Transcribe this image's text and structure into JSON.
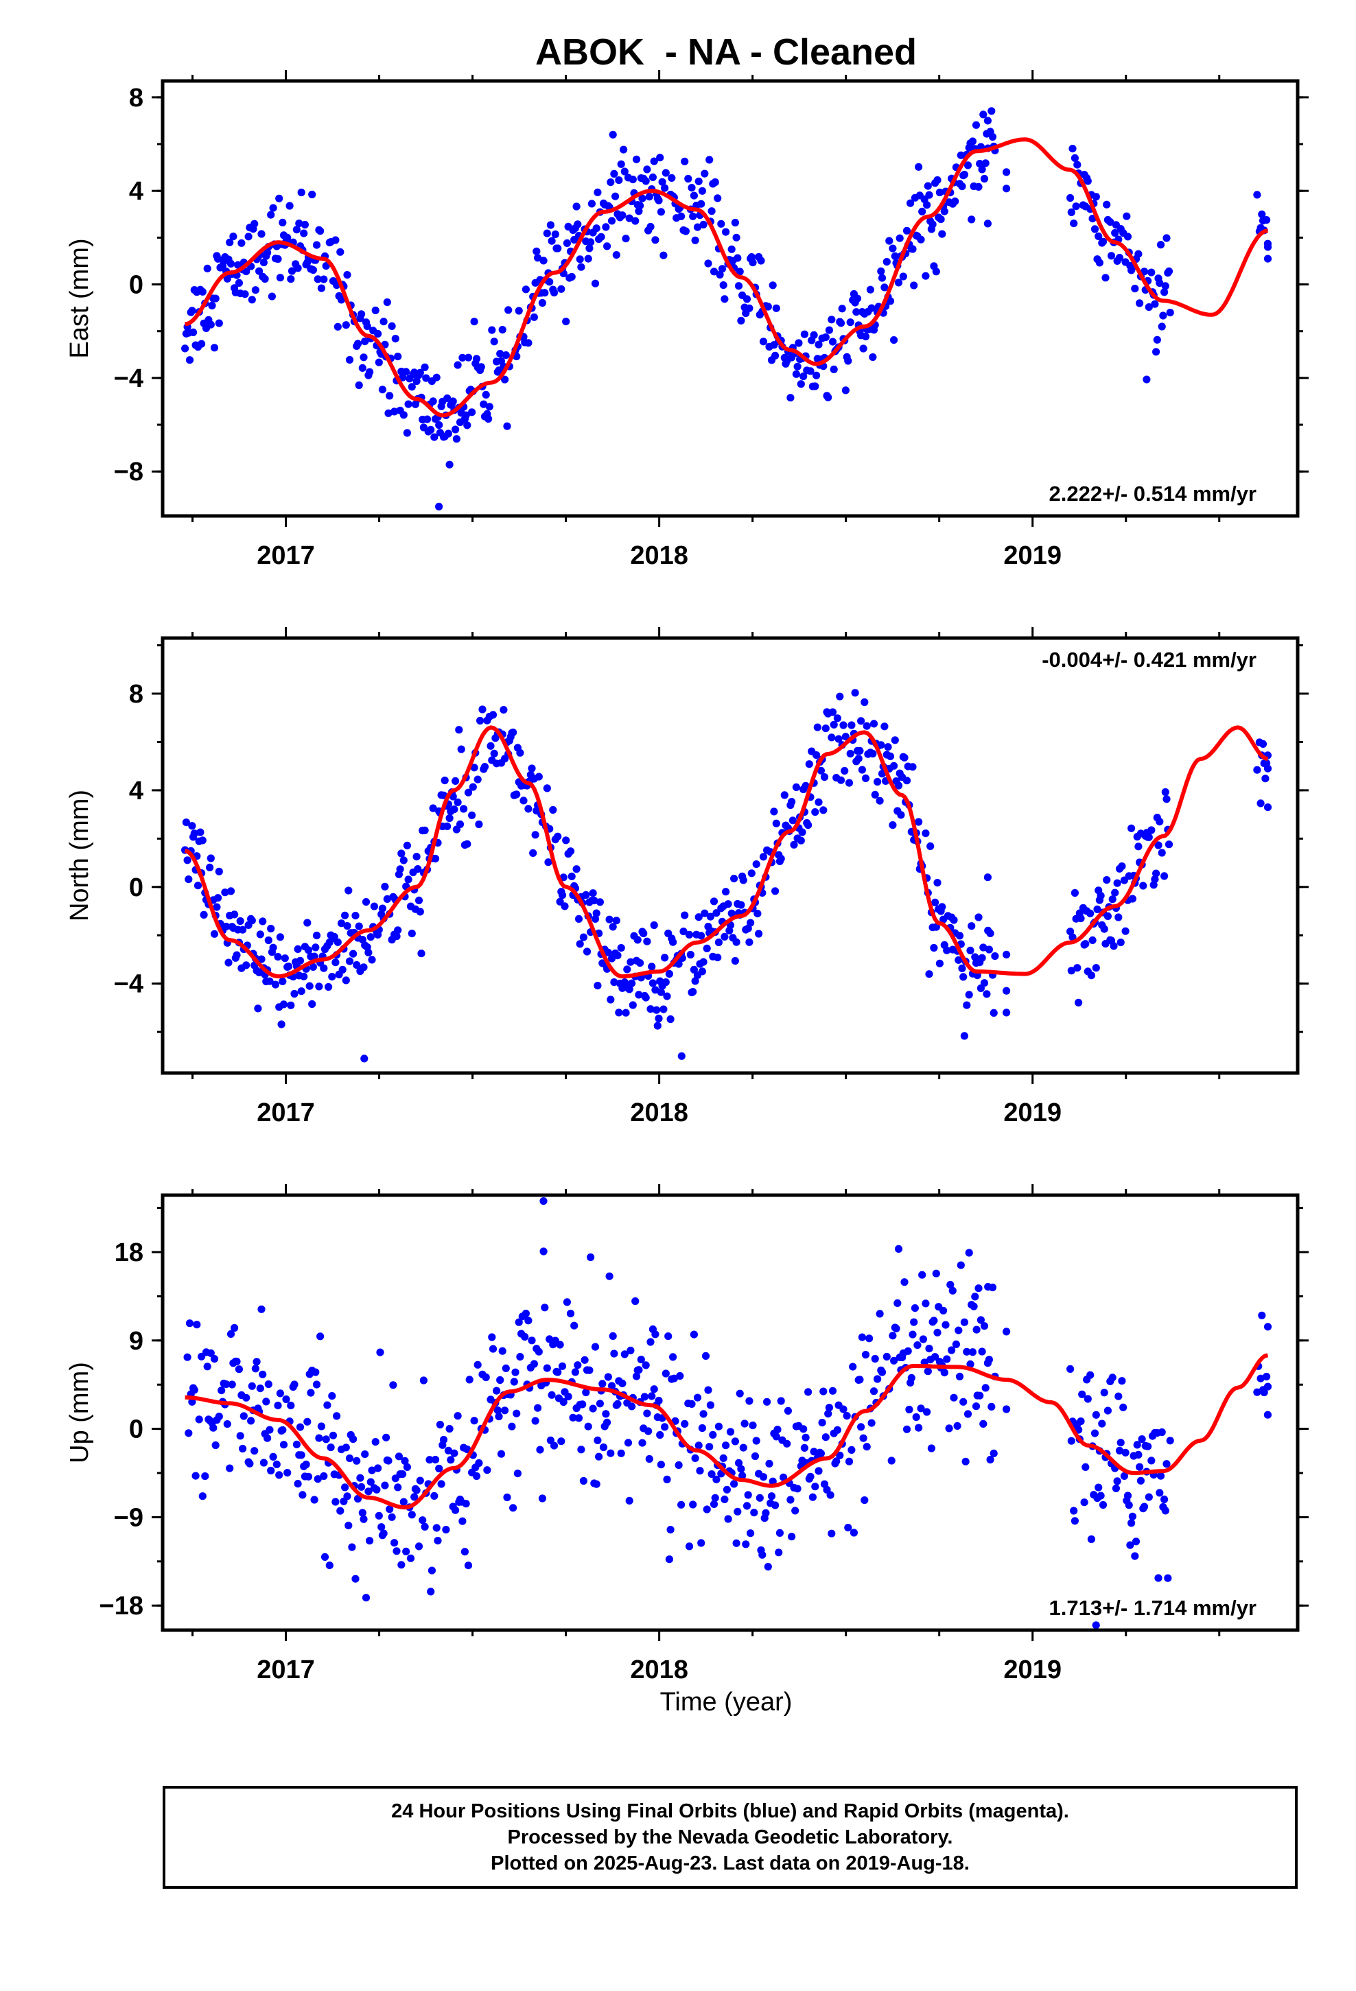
{
  "title": "ABOK  - NA - Cleaned",
  "xaxis_label": "Time (year)",
  "footer": {
    "line1": "24 Hour Positions Using Final Orbits (blue) and Rapid Orbits (magenta).",
    "line2": "Processed by the Nevada Geodetic Laboratory.",
    "line3": "Plotted on 2025-Aug-23. Last data on 2019-Aug-18."
  },
  "colors": {
    "points": "#0000ff",
    "fit": "#ff0000",
    "frame": "#000000"
  },
  "chart_data": [
    {
      "type": "scatter",
      "component": "east",
      "ylabel": "East (mm)",
      "xlim": [
        2016.67,
        2019.71
      ],
      "ylim": [
        -9.9,
        8.7
      ],
      "yticks": [
        8,
        4,
        0,
        -4,
        -8
      ],
      "ytick_labels": [
        "8",
        "4",
        "0",
        "−4",
        "−8"
      ],
      "xticks": [
        2017,
        2018,
        2019
      ],
      "xtick_labels": [
        "2017",
        "2018",
        "2019"
      ],
      "rate_label": "2.222+/- 0.514 mm/yr",
      "rate_label_position": "bottom-right",
      "grid": false,
      "data_span": [
        2016.73,
        2019.63
      ],
      "gaps": [
        [
          2018.9,
          2019.1
        ],
        [
          2019.37,
          2019.6
        ]
      ],
      "sparse_points": [
        [
          2018.88,
          7.0
        ],
        [
          2018.88,
          2.6
        ],
        [
          2018.93,
          4.8
        ],
        [
          2018.93,
          4.1
        ],
        [
          2019.63,
          1.6
        ],
        [
          2019.63,
          1.1
        ],
        [
          2017.41,
          -9.5
        ]
      ],
      "noise_sd": 1.0,
      "fit_curve": {
        "model": "seasonal",
        "x": [
          2016.73,
          2016.85,
          2016.98,
          2017.1,
          2017.22,
          2017.35,
          2017.42,
          2017.55,
          2017.72,
          2017.85,
          2017.98,
          2018.1,
          2018.22,
          2018.35,
          2018.42,
          2018.55,
          2018.72,
          2018.85,
          2018.98,
          2019.1,
          2019.22,
          2019.35,
          2019.48,
          2019.63
        ],
        "y": [
          -1.7,
          0.5,
          1.8,
          1.1,
          -2.2,
          -4.9,
          -5.6,
          -4.2,
          0.5,
          3.1,
          4.0,
          3.2,
          0.3,
          -2.8,
          -3.4,
          -1.8,
          2.9,
          5.7,
          6.2,
          4.9,
          1.8,
          -0.7,
          -1.3,
          2.3
        ]
      }
    },
    {
      "type": "scatter",
      "component": "north",
      "ylabel": "North (mm)",
      "xlim": [
        2016.67,
        2019.71
      ],
      "ylim": [
        -7.7,
        10.3
      ],
      "yticks": [
        8,
        4,
        0,
        -4
      ],
      "ytick_labels": [
        "8",
        "4",
        "0",
        "−4"
      ],
      "xticks": [
        2017,
        2018,
        2019
      ],
      "xtick_labels": [
        "2017",
        "2018",
        "2019"
      ],
      "rate_label": "-0.004+/- 0.421 mm/yr",
      "rate_label_position": "top-right",
      "grid": false,
      "data_span": [
        2016.73,
        2019.63
      ],
      "gaps": [
        [
          2018.9,
          2019.1
        ],
        [
          2019.37,
          2019.6
        ]
      ],
      "sparse_points": [
        [
          2018.88,
          0.4
        ],
        [
          2018.93,
          -2.8
        ],
        [
          2018.93,
          -4.3
        ],
        [
          2018.93,
          -5.2
        ],
        [
          2019.63,
          4.9
        ],
        [
          2019.63,
          3.3
        ],
        [
          2017.21,
          -7.1
        ],
        [
          2018.06,
          -7.0
        ]
      ],
      "noise_sd": 1.0,
      "fit_curve": {
        "model": "seasonal",
        "x": [
          2016.73,
          2016.85,
          2016.98,
          2017.1,
          2017.22,
          2017.35,
          2017.45,
          2017.55,
          2017.65,
          2017.75,
          2017.9,
          2018.0,
          2018.1,
          2018.22,
          2018.35,
          2018.45,
          2018.55,
          2018.65,
          2018.75,
          2018.85,
          2018.98,
          2019.1,
          2019.22,
          2019.35,
          2019.45,
          2019.55,
          2019.63
        ],
        "y": [
          1.5,
          -2.2,
          -3.7,
          -3.0,
          -1.8,
          0.0,
          4.0,
          6.6,
          4.3,
          0.0,
          -3.7,
          -3.5,
          -2.3,
          -1.2,
          2.3,
          5.5,
          6.4,
          3.8,
          -1.5,
          -3.5,
          -3.6,
          -2.3,
          -0.8,
          2.1,
          5.3,
          6.6,
          5.3
        ]
      }
    },
    {
      "type": "scatter",
      "component": "up",
      "ylabel": "Up (mm)",
      "xlim": [
        2016.67,
        2019.71
      ],
      "ylim": [
        -20.5,
        23.8
      ],
      "yticks": [
        18,
        9,
        0,
        -9,
        -18
      ],
      "ytick_labels": [
        "18",
        "9",
        "0",
        "−9",
        "−18"
      ],
      "xticks": [
        2017,
        2018,
        2019
      ],
      "xtick_labels": [
        "2017",
        "2018",
        "2019"
      ],
      "xlabel": "Time (year)",
      "rate_label": "1.713+/- 1.714 mm/yr",
      "rate_label_position": "bottom-right",
      "grid": false,
      "data_span": [
        2016.73,
        2019.63
      ],
      "gaps": [
        [
          2018.9,
          2019.1
        ],
        [
          2019.37,
          2019.6
        ]
      ],
      "sparse_points": [
        [
          2018.85,
          10.1
        ],
        [
          2018.88,
          6.7
        ],
        [
          2018.93,
          9.9
        ],
        [
          2018.93,
          2.0
        ],
        [
          2019.63,
          10.4
        ],
        [
          2019.63,
          4.3
        ],
        [
          2017.69,
          23.2
        ],
        [
          2019.17,
          -20.0
        ]
      ],
      "noise_sd": 4.5,
      "fit_curve": {
        "model": "seasonal",
        "x": [
          2016.73,
          2016.85,
          2016.98,
          2017.1,
          2017.22,
          2017.32,
          2017.45,
          2017.6,
          2017.7,
          2017.85,
          2017.98,
          2018.1,
          2018.22,
          2018.3,
          2018.45,
          2018.55,
          2018.68,
          2018.8,
          2018.93,
          2019.05,
          2019.15,
          2019.27,
          2019.35,
          2019.45,
          2019.55,
          2019.63
        ],
        "y": [
          3.2,
          2.6,
          0.9,
          -3.0,
          -7.0,
          -8.0,
          -4.0,
          3.8,
          5.0,
          4.0,
          2.4,
          -2.2,
          -5.2,
          -5.8,
          -3.0,
          1.8,
          6.4,
          6.3,
          5.0,
          2.7,
          -1.7,
          -4.5,
          -4.3,
          -1.2,
          4.2,
          7.5
        ]
      }
    }
  ]
}
